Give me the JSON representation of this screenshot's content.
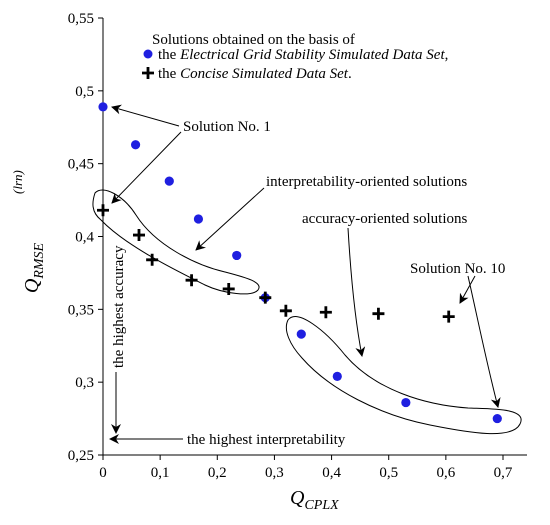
{
  "chart_data": {
    "type": "scatter",
    "xlabel": "Q",
    "xlabel_sub": "CPLX",
    "ylabel": "Q",
    "ylabel_sub": "RMSE",
    "ylabel_sup": "(lrn)",
    "xlim": [
      0,
      0.7
    ],
    "ylim": [
      0.25,
      0.55
    ],
    "xticks": [
      "0",
      "0,1",
      "0,2",
      "0,3",
      "0,4",
      "0,5",
      "0,6",
      "0,7"
    ],
    "yticks": [
      "0,25",
      "0,3",
      "0,35",
      "0,4",
      "0,45",
      "0,5",
      "0,55"
    ],
    "grid": false,
    "legend": {
      "placement": "top-right",
      "title": "Solutions obtained on the basis of",
      "prefix": "the",
      "suffix_1": ",",
      "suffix_2": "."
    },
    "series": [
      {
        "name": "Electrical Grid Stability Simulated Data Set",
        "marker": "circle",
        "color": "#1f1fe0",
        "x": [
          0.0,
          0.057,
          0.116,
          0.167,
          0.234,
          0.284,
          0.347,
          0.41,
          0.53,
          0.69
        ],
        "y": [
          0.489,
          0.463,
          0.438,
          0.412,
          0.387,
          0.358,
          0.333,
          0.304,
          0.286,
          0.275
        ]
      },
      {
        "name": "Concise Simulated Data Set",
        "marker": "plus",
        "color": "#000000",
        "x": [
          0.0,
          0.063,
          0.086,
          0.155,
          0.22,
          0.284,
          0.32,
          0.39,
          0.482,
          0.605
        ],
        "y": [
          0.418,
          0.401,
          0.384,
          0.37,
          0.364,
          0.358,
          0.349,
          0.348,
          0.347,
          0.345
        ]
      }
    ],
    "annotations": {
      "solution_1": "Solution No. 1",
      "interpretability": "interpretability-oriented solutions",
      "accuracy": "accuracy-oriented solutions",
      "solution_10": "Solution No. 10",
      "highest_accuracy": "the highest accuracy",
      "highest_interpretability": "the highest interpretability"
    }
  }
}
